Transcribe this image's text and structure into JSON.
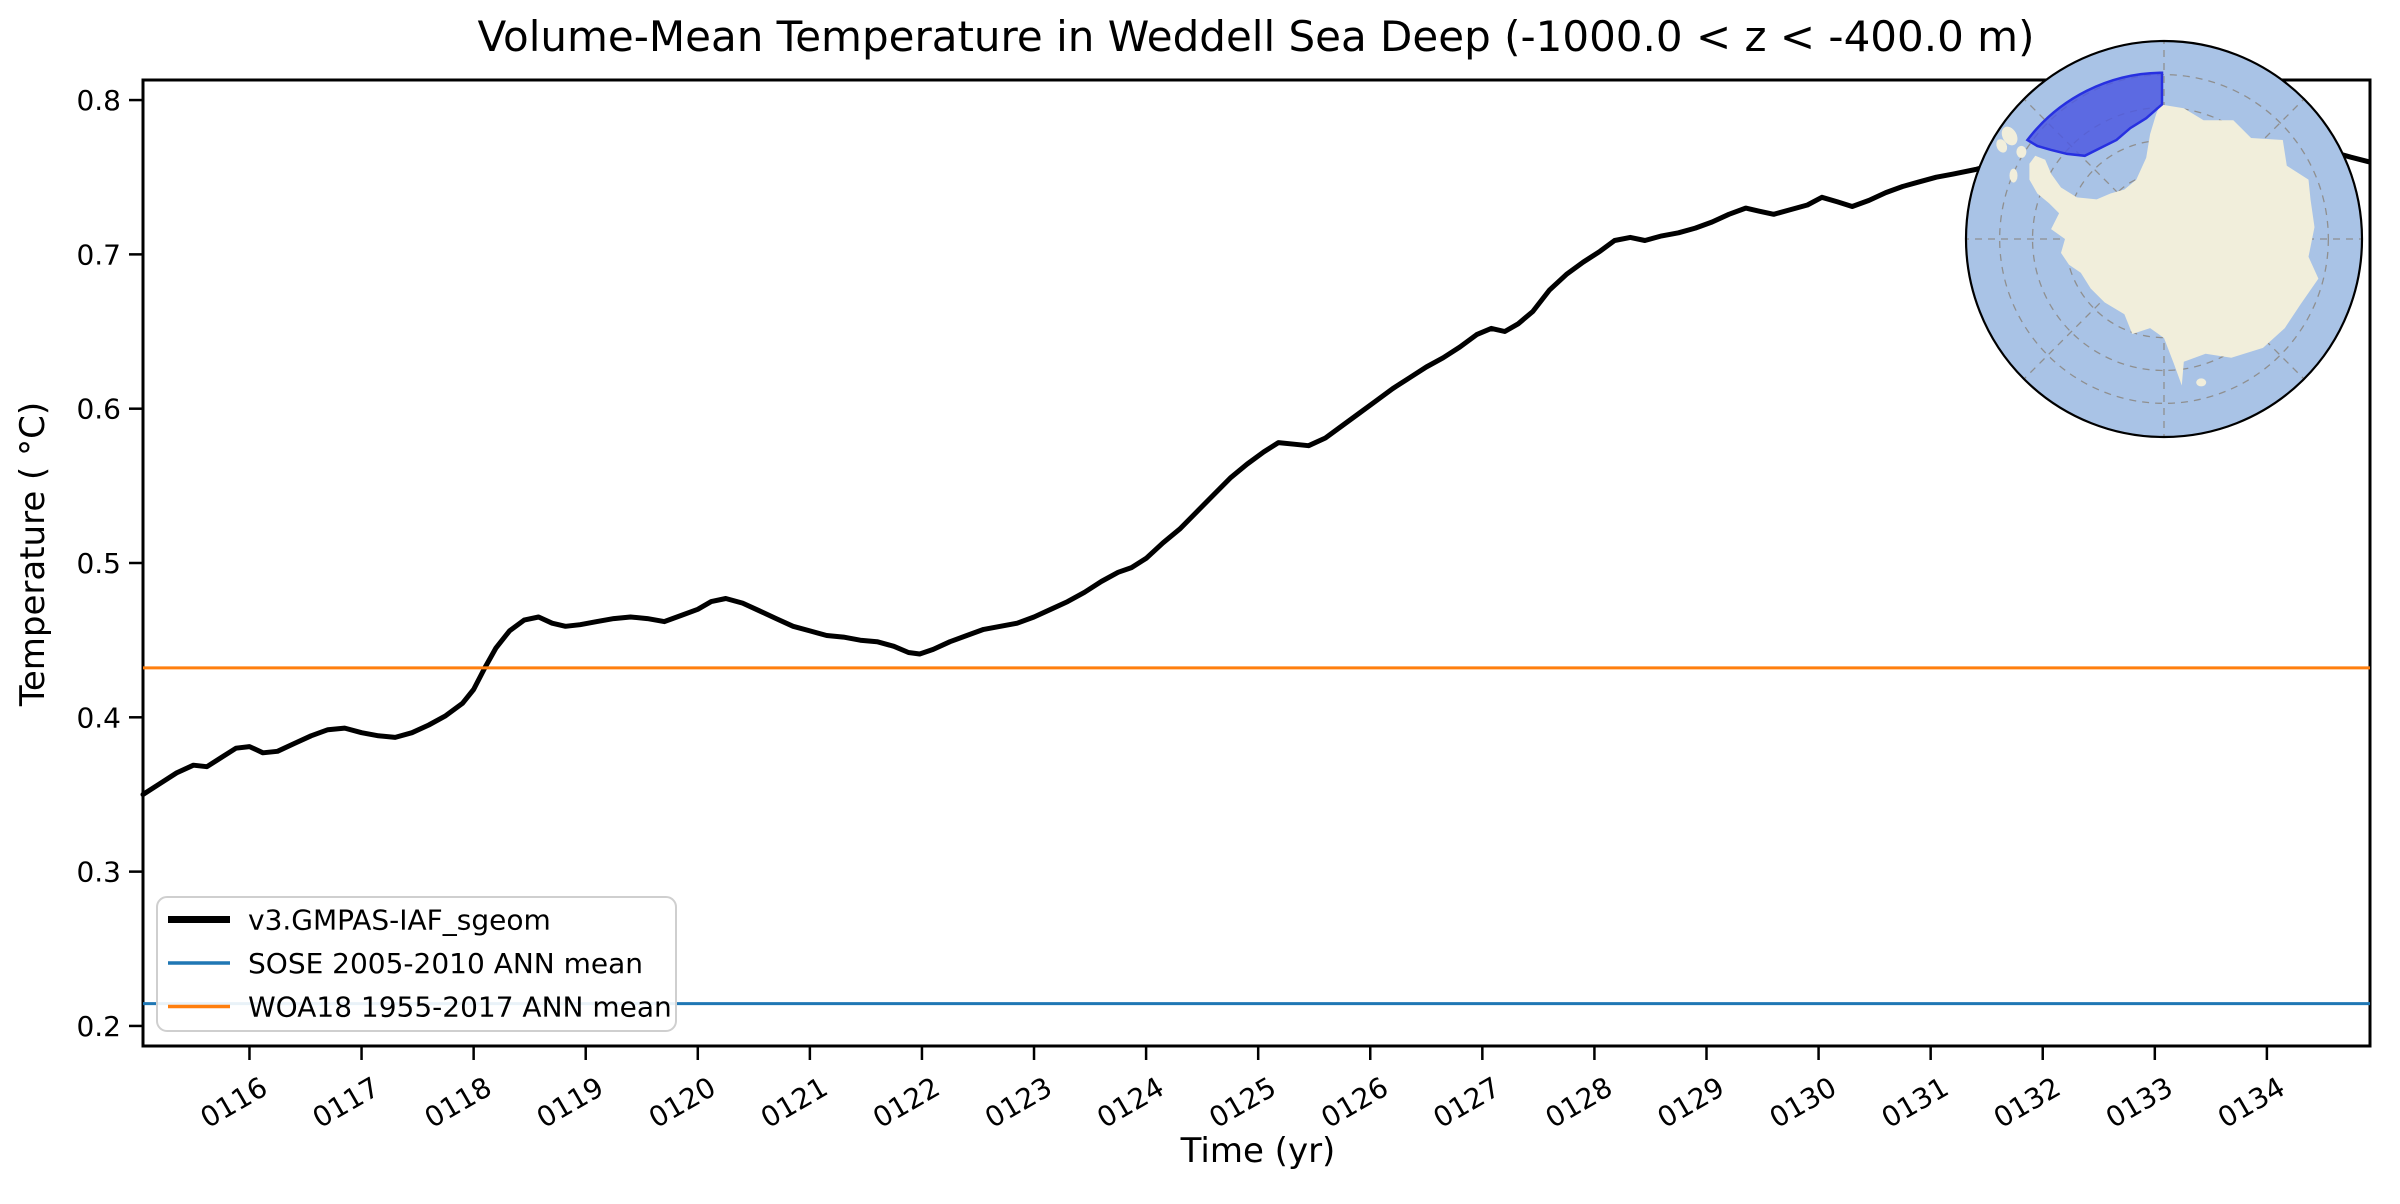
{
  "title": "Volume-Mean Temperature in Weddell Sea Deep (-1000.0 < z < -400.0 m)",
  "axes": {
    "xlabel": "Time (yr)",
    "ylabel": "Temperature ( °C)",
    "x_tick_labels": [
      "0116",
      "0117",
      "0118",
      "0119",
      "0120",
      "0121",
      "0122",
      "0123",
      "0124",
      "0125",
      "0126",
      "0127",
      "0128",
      "0129",
      "0130",
      "0131",
      "0132",
      "0133",
      "0134"
    ],
    "x_tick_values": [
      116,
      117,
      118,
      119,
      120,
      121,
      122,
      123,
      124,
      125,
      126,
      127,
      128,
      129,
      130,
      131,
      132,
      133,
      134
    ],
    "y_tick_labels": [
      "0.2",
      "0.3",
      "0.4",
      "0.5",
      "0.6",
      "0.7",
      "0.8"
    ],
    "y_tick_values": [
      0.2,
      0.3,
      0.4,
      0.5,
      0.6,
      0.7,
      0.8
    ],
    "xlim": [
      115.05,
      134.92
    ],
    "ylim": [
      0.187,
      0.813
    ],
    "grid": false
  },
  "legend": {
    "position": "lower-left",
    "entries": [
      {
        "label": "v3.GMPAS-IAF_sgeom",
        "color": "#000000",
        "linewidth": 7
      },
      {
        "label": "SOSE 2005-2010 ANN mean",
        "color": "#1f77b4",
        "linewidth": 3.5
      },
      {
        "label": "WOA18 1955-2017 ANN mean",
        "color": "#ff7f0e",
        "linewidth": 3.5
      }
    ]
  },
  "chart_data": {
    "type": "line",
    "xlabel": "Time (yr)",
    "ylabel": "Temperature ( °C)",
    "title": "Volume-Mean Temperature in Weddell Sea Deep (-1000.0 < z < -400.0 m)",
    "xlim": [
      115.05,
      134.92
    ],
    "ylim": [
      0.187,
      0.813
    ],
    "series": [
      {
        "name": "v3.GMPAS-IAF_sgeom",
        "type": "line",
        "color": "#000000",
        "linewidth": 5,
        "points": [
          [
            115.05,
            0.35
          ],
          [
            115.2,
            0.357
          ],
          [
            115.35,
            0.364
          ],
          [
            115.5,
            0.369
          ],
          [
            115.62,
            0.368
          ],
          [
            115.75,
            0.374
          ],
          [
            115.88,
            0.38
          ],
          [
            116.0,
            0.381
          ],
          [
            116.12,
            0.377
          ],
          [
            116.25,
            0.378
          ],
          [
            116.4,
            0.383
          ],
          [
            116.55,
            0.388
          ],
          [
            116.7,
            0.392
          ],
          [
            116.85,
            0.393
          ],
          [
            117.0,
            0.39
          ],
          [
            117.15,
            0.388
          ],
          [
            117.3,
            0.387
          ],
          [
            117.45,
            0.39
          ],
          [
            117.6,
            0.395
          ],
          [
            117.75,
            0.401
          ],
          [
            117.9,
            0.409
          ],
          [
            118.0,
            0.418
          ],
          [
            118.1,
            0.432
          ],
          [
            118.2,
            0.445
          ],
          [
            118.32,
            0.456
          ],
          [
            118.45,
            0.463
          ],
          [
            118.58,
            0.465
          ],
          [
            118.7,
            0.461
          ],
          [
            118.82,
            0.459
          ],
          [
            118.95,
            0.46
          ],
          [
            119.1,
            0.462
          ],
          [
            119.25,
            0.464
          ],
          [
            119.4,
            0.465
          ],
          [
            119.55,
            0.464
          ],
          [
            119.7,
            0.462
          ],
          [
            119.85,
            0.466
          ],
          [
            120.0,
            0.47
          ],
          [
            120.12,
            0.475
          ],
          [
            120.25,
            0.477
          ],
          [
            120.4,
            0.474
          ],
          [
            120.55,
            0.469
          ],
          [
            120.7,
            0.464
          ],
          [
            120.85,
            0.459
          ],
          [
            121.0,
            0.456
          ],
          [
            121.15,
            0.453
          ],
          [
            121.3,
            0.452
          ],
          [
            121.45,
            0.45
          ],
          [
            121.6,
            0.449
          ],
          [
            121.75,
            0.446
          ],
          [
            121.88,
            0.442
          ],
          [
            121.98,
            0.441
          ],
          [
            122.1,
            0.444
          ],
          [
            122.25,
            0.449
          ],
          [
            122.4,
            0.453
          ],
          [
            122.55,
            0.457
          ],
          [
            122.7,
            0.459
          ],
          [
            122.85,
            0.461
          ],
          [
            123.0,
            0.465
          ],
          [
            123.15,
            0.47
          ],
          [
            123.3,
            0.475
          ],
          [
            123.45,
            0.481
          ],
          [
            123.6,
            0.488
          ],
          [
            123.75,
            0.494
          ],
          [
            123.87,
            0.497
          ],
          [
            124.0,
            0.503
          ],
          [
            124.15,
            0.513
          ],
          [
            124.3,
            0.522
          ],
          [
            124.45,
            0.533
          ],
          [
            124.6,
            0.544
          ],
          [
            124.75,
            0.555
          ],
          [
            124.9,
            0.564
          ],
          [
            125.05,
            0.572
          ],
          [
            125.18,
            0.578
          ],
          [
            125.32,
            0.577
          ],
          [
            125.45,
            0.576
          ],
          [
            125.6,
            0.581
          ],
          [
            125.75,
            0.589
          ],
          [
            125.9,
            0.597
          ],
          [
            126.05,
            0.605
          ],
          [
            126.2,
            0.613
          ],
          [
            126.35,
            0.62
          ],
          [
            126.5,
            0.627
          ],
          [
            126.65,
            0.633
          ],
          [
            126.8,
            0.64
          ],
          [
            126.95,
            0.648
          ],
          [
            127.08,
            0.652
          ],
          [
            127.2,
            0.65
          ],
          [
            127.32,
            0.655
          ],
          [
            127.45,
            0.663
          ],
          [
            127.6,
            0.677
          ],
          [
            127.75,
            0.687
          ],
          [
            127.9,
            0.695
          ],
          [
            128.05,
            0.702
          ],
          [
            128.18,
            0.709
          ],
          [
            128.32,
            0.711
          ],
          [
            128.45,
            0.709
          ],
          [
            128.6,
            0.712
          ],
          [
            128.75,
            0.714
          ],
          [
            128.9,
            0.717
          ],
          [
            129.05,
            0.721
          ],
          [
            129.2,
            0.726
          ],
          [
            129.35,
            0.73
          ],
          [
            129.47,
            0.728
          ],
          [
            129.6,
            0.726
          ],
          [
            129.75,
            0.729
          ],
          [
            129.9,
            0.732
          ],
          [
            130.03,
            0.737
          ],
          [
            130.17,
            0.734
          ],
          [
            130.3,
            0.731
          ],
          [
            130.45,
            0.735
          ],
          [
            130.6,
            0.74
          ],
          [
            130.75,
            0.744
          ],
          [
            130.9,
            0.747
          ],
          [
            131.05,
            0.75
          ],
          [
            131.2,
            0.752
          ],
          [
            131.4,
            0.755
          ],
          [
            131.6,
            0.759
          ],
          [
            131.8,
            0.763
          ],
          [
            132.0,
            0.766
          ],
          [
            132.2,
            0.769
          ],
          [
            132.4,
            0.772
          ],
          [
            132.6,
            0.774
          ],
          [
            132.8,
            0.775
          ],
          [
            133.0,
            0.776
          ],
          [
            133.2,
            0.775
          ],
          [
            133.4,
            0.773
          ],
          [
            133.6,
            0.771
          ],
          [
            133.8,
            0.77
          ],
          [
            134.0,
            0.77
          ],
          [
            134.2,
            0.769
          ],
          [
            134.4,
            0.768
          ],
          [
            134.6,
            0.766
          ],
          [
            134.75,
            0.763
          ],
          [
            134.91,
            0.76
          ]
        ]
      },
      {
        "name": "SOSE 2005-2010 ANN mean",
        "type": "hline",
        "color": "#1f77b4",
        "linewidth": 3,
        "value": 0.2145
      },
      {
        "name": "WOA18 1955-2017 ANN mean",
        "type": "hline",
        "color": "#ff7f0e",
        "linewidth": 3,
        "value": 0.432
      }
    ]
  },
  "inset_map": {
    "name": "antarctica-south-polar-map",
    "highlighted_region": "Weddell Sea Deep",
    "colors": {
      "ocean": "#a9c3e6",
      "land": "#f1eedb",
      "region_fill": "#4f5ae0",
      "region_stroke": "#2730e0",
      "graticule": "#8f8f8f",
      "rim": "#000000"
    }
  }
}
